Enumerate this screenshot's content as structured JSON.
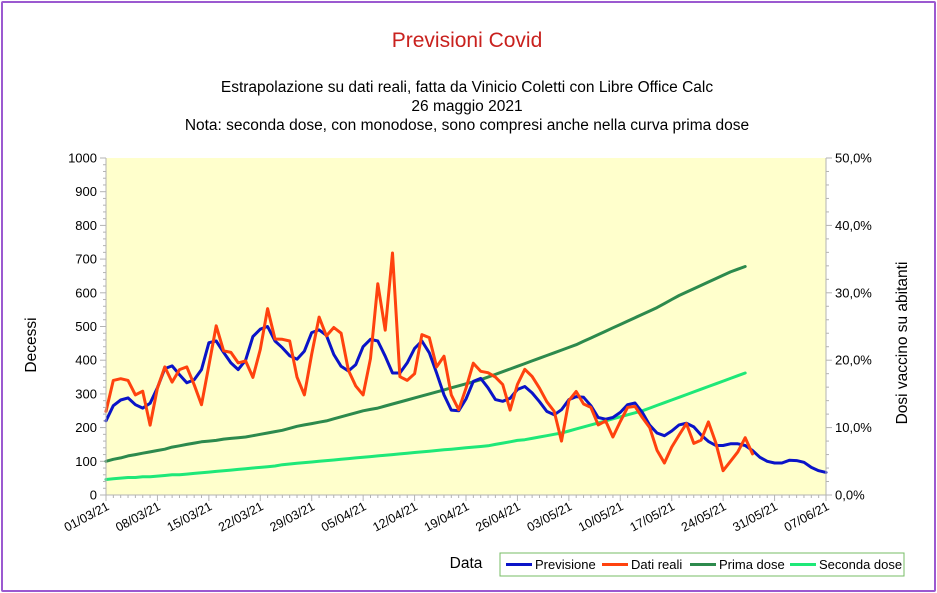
{
  "chart_data": {
    "type": "line",
    "title": "Previsioni Covid",
    "subtitle_lines": [
      "Estrapolazione su dati reali, fatta da Vinicio Coletti con Libre Office Calc",
      "26 maggio 2021",
      "Nota: seconda dose, con monodose, sono compresi anche nella curva prima dose"
    ],
    "xlabel": "Data",
    "ylabel": "Decessi",
    "y2label": "Dosi vaccino su abitanti",
    "ylim": [
      0,
      1000
    ],
    "y_ticks": [
      "0",
      "100",
      "200",
      "300",
      "400",
      "500",
      "600",
      "700",
      "800",
      "900",
      "1000"
    ],
    "y2lim": [
      0,
      0.5
    ],
    "y2_ticks": [
      "0,0%",
      "10,0%",
      "20,0%",
      "30,0%",
      "40,0%",
      "50,0%"
    ],
    "x_range": [
      "01/03/21",
      "07/06/21"
    ],
    "x_ticks": [
      "01/03/21",
      "08/03/21",
      "15/03/21",
      "22/03/21",
      "29/03/21",
      "05/04/21",
      "12/04/21",
      "19/04/21",
      "26/04/21",
      "03/05/21",
      "10/05/21",
      "17/05/21",
      "24/05/21",
      "31/05/21",
      "07/06/21"
    ],
    "grid": false,
    "legend_position": "bottom-right",
    "start_date": "01/03/21",
    "series": [
      {
        "name": "Previsione",
        "axis": "left",
        "color": "#0a14c8",
        "values": [
          220,
          265,
          282,
          288,
          268,
          258,
          272,
          318,
          375,
          383,
          357,
          333,
          342,
          372,
          452,
          457,
          423,
          392,
          372,
          400,
          470,
          492,
          500,
          457,
          437,
          413,
          403,
          427,
          482,
          490,
          474,
          417,
          382,
          368,
          387,
          440,
          462,
          457,
          412,
          362,
          362,
          392,
          435,
          457,
          422,
          362,
          297,
          252,
          250,
          285,
          337,
          346,
          318,
          283,
          278,
          287,
          313,
          322,
          303,
          277,
          248,
          238,
          253,
          283,
          292,
          290,
          265,
          230,
          225,
          230,
          245,
          268,
          273,
          245,
          207,
          184,
          176,
          190,
          208,
          213,
          202,
          178,
          159,
          147,
          147,
          152,
          152,
          147,
          132,
          112,
          100,
          95,
          95,
          103,
          102,
          97,
          82,
          72,
          67
        ]
      },
      {
        "name": "Dati reali",
        "axis": "left",
        "color": "#ff420e",
        "values": [
          248,
          340,
          345,
          340,
          297,
          308,
          207,
          317,
          380,
          335,
          372,
          380,
          327,
          268,
          385,
          502,
          428,
          423,
          392,
          398,
          349,
          432,
          553,
          463,
          462,
          457,
          350,
          297,
          418,
          528,
          472,
          497,
          480,
          370,
          323,
          297,
          405,
          627,
          489,
          718,
          351,
          340,
          360,
          476,
          467,
          380,
          412,
          297,
          253,
          317,
          391,
          367,
          363,
          350,
          328,
          252,
          328,
          373,
          352,
          317,
          277,
          248,
          160,
          280,
          307,
          270,
          260,
          208,
          220,
          172,
          218,
          260,
          263,
          230,
          200,
          133,
          95,
          142,
          178,
          212,
          153,
          163,
          217,
          155,
          72,
          100,
          128,
          170,
          122
        ]
      },
      {
        "name": "Prima dose",
        "axis": "right",
        "color": "#2d8a4d",
        "values": [
          0.05,
          0.053,
          0.055,
          0.058,
          0.06,
          0.062,
          0.064,
          0.066,
          0.068,
          0.071,
          0.073,
          0.075,
          0.077,
          0.079,
          0.08,
          0.081,
          0.083,
          0.084,
          0.085,
          0.086,
          0.088,
          0.09,
          0.092,
          0.094,
          0.096,
          0.099,
          0.102,
          0.104,
          0.106,
          0.108,
          0.11,
          0.113,
          0.116,
          0.119,
          0.122,
          0.125,
          0.127,
          0.129,
          0.132,
          0.135,
          0.138,
          0.141,
          0.144,
          0.147,
          0.15,
          0.153,
          0.156,
          0.159,
          0.162,
          0.165,
          0.168,
          0.171,
          0.175,
          0.179,
          0.183,
          0.187,
          0.191,
          0.195,
          0.199,
          0.203,
          0.207,
          0.211,
          0.215,
          0.219,
          0.223,
          0.228,
          0.233,
          0.238,
          0.243,
          0.248,
          0.253,
          0.258,
          0.263,
          0.268,
          0.273,
          0.278,
          0.284,
          0.29,
          0.296,
          0.301,
          0.306,
          0.311,
          0.316,
          0.321,
          0.326,
          0.331,
          0.335,
          0.339
        ]
      },
      {
        "name": "Seconda dose",
        "axis": "right",
        "color": "#1ee878",
        "values": [
          0.023,
          0.024,
          0.025,
          0.026,
          0.026,
          0.027,
          0.027,
          0.028,
          0.029,
          0.03,
          0.03,
          0.031,
          0.032,
          0.033,
          0.034,
          0.035,
          0.036,
          0.037,
          0.038,
          0.039,
          0.04,
          0.041,
          0.042,
          0.043,
          0.045,
          0.046,
          0.047,
          0.048,
          0.049,
          0.05,
          0.051,
          0.052,
          0.053,
          0.054,
          0.055,
          0.056,
          0.057,
          0.058,
          0.059,
          0.06,
          0.061,
          0.062,
          0.063,
          0.064,
          0.065,
          0.066,
          0.067,
          0.068,
          0.069,
          0.07,
          0.071,
          0.072,
          0.073,
          0.075,
          0.077,
          0.079,
          0.081,
          0.082,
          0.084,
          0.086,
          0.088,
          0.09,
          0.092,
          0.095,
          0.098,
          0.101,
          0.104,
          0.107,
          0.11,
          0.113,
          0.116,
          0.119,
          0.122,
          0.125,
          0.129,
          0.133,
          0.137,
          0.141,
          0.145,
          0.149,
          0.153,
          0.157,
          0.161,
          0.165,
          0.169,
          0.173,
          0.177,
          0.181
        ]
      }
    ]
  }
}
